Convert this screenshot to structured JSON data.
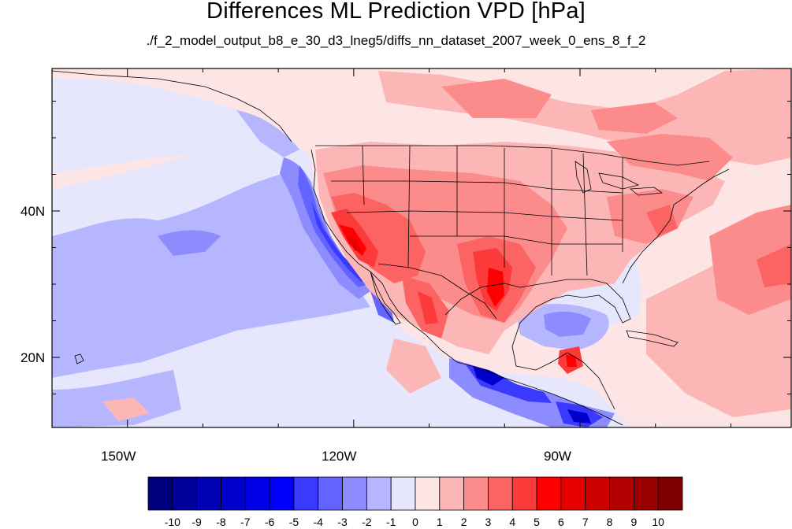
{
  "title": "Differences ML Prediction VPD [hPa]",
  "subtitle": "./f_2_model_output_b8_e_30_d3_lneg5/diffs_nn_dataset_2007_week_0_ens_8_f_2",
  "map": {
    "lon_range": [
      -160,
      -62
    ],
    "lat_range": [
      11,
      59
    ],
    "lon_ticks": [
      "150W",
      "120W",
      "90W"
    ],
    "lat_ticks": [
      "40N",
      "20N"
    ]
  },
  "colorbar": {
    "labels": [
      "-10",
      "-9",
      "-8",
      "-7",
      "-6",
      "-5",
      "-4",
      "-3",
      "-2",
      "-1",
      "0",
      "1",
      "2",
      "3",
      "4",
      "5",
      "6",
      "7",
      "8",
      "9",
      "10"
    ],
    "colors": [
      "#00007f",
      "#00009a",
      "#0000b4",
      "#0000cd",
      "#0000e6",
      "#0000ff",
      "#3a3aff",
      "#6363ff",
      "#8c8cff",
      "#b6b6ff",
      "#e6e6fc",
      "#fde5e5",
      "#fcb6b6",
      "#fc8c8c",
      "#fc6363",
      "#fc3a3a",
      "#ff0000",
      "#e60000",
      "#cd0000",
      "#b40000",
      "#9a0000",
      "#7f0000"
    ]
  }
}
